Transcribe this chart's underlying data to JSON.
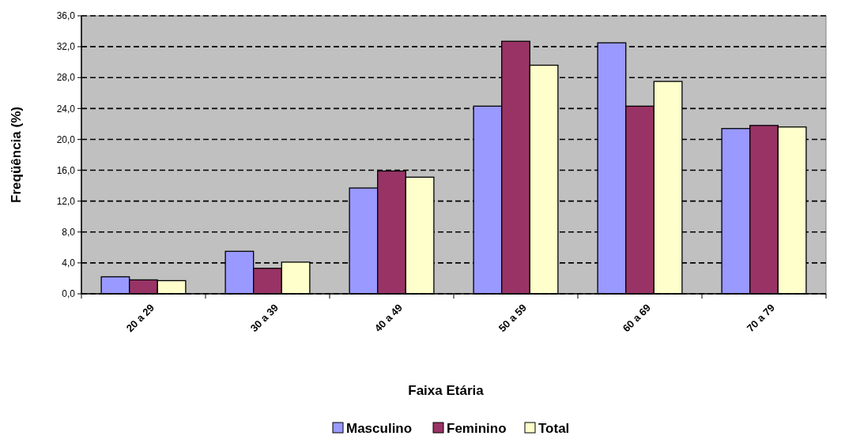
{
  "chart_data": {
    "type": "bar",
    "xlabel": "Faixa Etária",
    "ylabel": "Freqüência (%)",
    "categories": [
      "20 a 29",
      "30 a 39",
      "40 a 49",
      "50 a 59",
      "60 a 69",
      "70 a 79"
    ],
    "series": [
      {
        "name": "Masculino",
        "color": "#9999ff",
        "values": [
          2.2,
          5.5,
          13.7,
          24.3,
          32.5,
          21.4
        ]
      },
      {
        "name": "Feminino",
        "color": "#993366",
        "values": [
          1.8,
          3.3,
          15.9,
          32.7,
          24.3,
          21.8
        ]
      },
      {
        "name": "Total",
        "color": "#ffffcc",
        "values": [
          1.7,
          4.1,
          15.1,
          29.6,
          27.5,
          21.6
        ]
      }
    ],
    "ylim": [
      0,
      36
    ],
    "yticks": [
      {
        "value": 0,
        "label": "0,0"
      },
      {
        "value": 4,
        "label": "4,0"
      },
      {
        "value": 8,
        "label": "8,0"
      },
      {
        "value": 12,
        "label": "12,0"
      },
      {
        "value": 16,
        "label": "16,0"
      },
      {
        "value": 20,
        "label": "20,0"
      },
      {
        "value": 24,
        "label": "24,0"
      },
      {
        "value": 28,
        "label": "28,0"
      },
      {
        "value": 32,
        "label": "32,0"
      },
      {
        "value": 36,
        "label": "36,0"
      }
    ],
    "grid": "y",
    "legend": "bottom"
  }
}
